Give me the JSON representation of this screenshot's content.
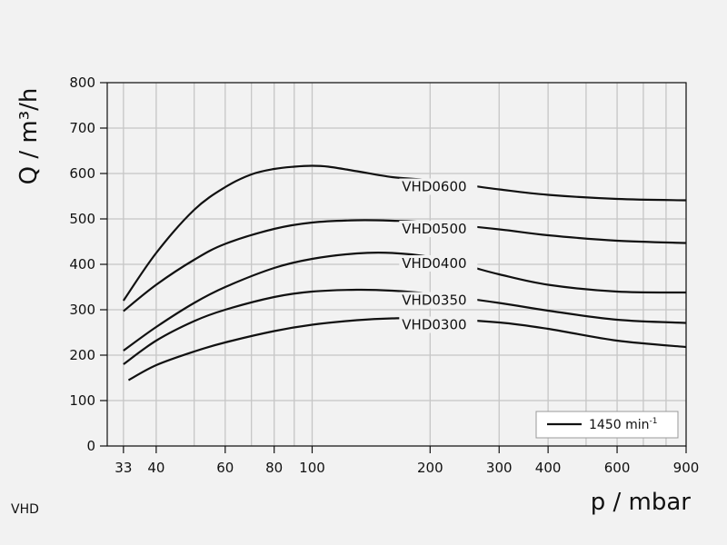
{
  "footer_tag": "VHD",
  "chart_data": {
    "type": "line",
    "xlabel": "p / mbar",
    "ylabel": "Q / m³/h",
    "x_scale": "log",
    "xlim": [
      30,
      900
    ],
    "ylim": [
      0,
      800
    ],
    "x_ticks": [
      33,
      40,
      60,
      80,
      100,
      200,
      300,
      400,
      600,
      900
    ],
    "x_minor_ticks": [
      50,
      70,
      90,
      500,
      700,
      800
    ],
    "y_ticks": [
      0,
      100,
      200,
      300,
      400,
      500,
      600,
      700,
      800
    ],
    "grid": true,
    "legend": {
      "placement": "bottom-right",
      "entry": "1450 min",
      "entry_superscript": "-1"
    },
    "series": [
      {
        "name": "VHD0600",
        "x": [
          33,
          40,
          50,
          60,
          70,
          80,
          90,
          100,
          110,
          130,
          160,
          200,
          300,
          400,
          600,
          900
        ],
        "y": [
          320,
          425,
          520,
          570,
          598,
          610,
          615,
          617,
          615,
          605,
          592,
          585,
          565,
          553,
          544,
          541
        ]
      },
      {
        "name": "VHD0500",
        "x": [
          33,
          40,
          50,
          60,
          80,
          100,
          130,
          160,
          200,
          300,
          400,
          600,
          900
        ],
        "y": [
          297,
          355,
          410,
          445,
          478,
          492,
          497,
          496,
          492,
          477,
          464,
          452,
          447
        ]
      },
      {
        "name": "VHD0400",
        "x": [
          33,
          40,
          50,
          60,
          80,
          100,
          130,
          160,
          200,
          250,
          300,
          400,
          600,
          900
        ],
        "y": [
          210,
          262,
          315,
          350,
          392,
          412,
          424,
          425,
          416,
          396,
          378,
          355,
          340,
          338
        ]
      },
      {
        "name": "VHD0350",
        "x": [
          33,
          40,
          50,
          60,
          80,
          100,
          130,
          160,
          200,
          300,
          400,
          600,
          900
        ],
        "y": [
          180,
          232,
          275,
          300,
          328,
          340,
          344,
          342,
          335,
          315,
          298,
          278,
          271
        ]
      },
      {
        "name": "VHD0300",
        "x": [
          34,
          40,
          50,
          60,
          80,
          100,
          130,
          160,
          200,
          300,
          400,
          600,
          900
        ],
        "y": [
          145,
          178,
          208,
          228,
          253,
          267,
          277,
          281,
          281,
          272,
          258,
          232,
          218
        ]
      }
    ]
  }
}
